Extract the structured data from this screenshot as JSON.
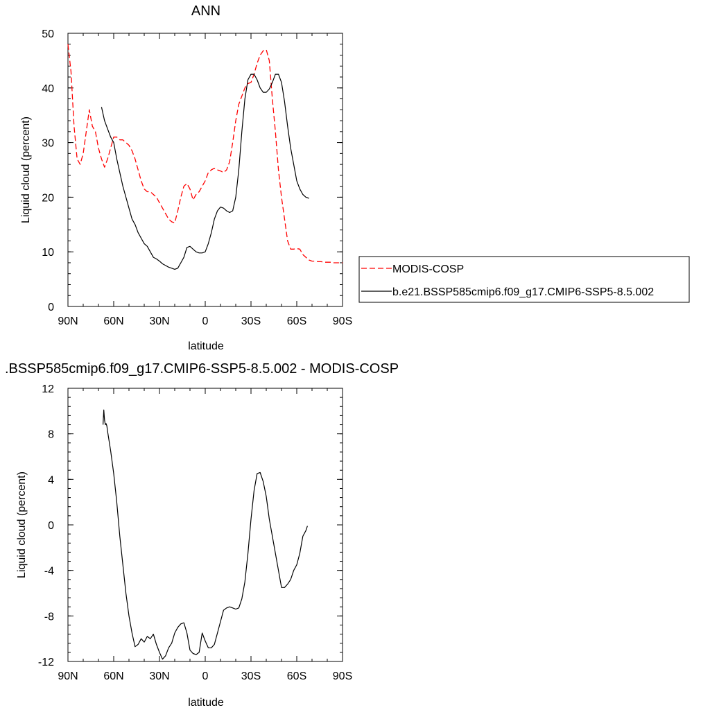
{
  "chart_data": [
    {
      "type": "line",
      "title": "ANN",
      "xlabel": "latitude",
      "ylabel": "Liquid cloud (percent)",
      "xlim": [
        90,
        -90
      ],
      "ylim": [
        0,
        50
      ],
      "x_ticks": [
        90,
        60,
        30,
        0,
        -30,
        -60,
        -90
      ],
      "x_tick_labels": [
        "90N",
        "60N",
        "30N",
        "0",
        "30S",
        "60S",
        "90S"
      ],
      "y_ticks": [
        0,
        10,
        20,
        30,
        40,
        50
      ],
      "y_tick_labels": [
        "0",
        "10",
        "20",
        "30",
        "40",
        "50"
      ],
      "grid": false,
      "legend": "right",
      "series": [
        {
          "name": "MODIS-COSP",
          "color": "#ff0000",
          "dash": "dashed",
          "x": [
            90,
            88,
            86,
            84,
            82,
            80,
            78,
            76,
            74,
            72,
            70,
            68,
            66,
            64,
            62,
            60,
            58,
            56,
            54,
            52,
            50,
            48,
            46,
            44,
            42,
            40,
            38,
            36,
            34,
            32,
            30,
            28,
            26,
            24,
            22,
            20,
            18,
            16,
            14,
            12,
            10,
            8,
            6,
            4,
            2,
            0,
            -2,
            -4,
            -6,
            -8,
            -10,
            -12,
            -14,
            -16,
            -18,
            -20,
            -22,
            -24,
            -26,
            -28,
            -30,
            -32,
            -34,
            -36,
            -38,
            -40,
            -42,
            -44,
            -46,
            -48,
            -50,
            -52,
            -54,
            -56,
            -58,
            -60,
            -62,
            -64,
            -66,
            -68,
            -70,
            -72,
            -74,
            -76,
            -78,
            -80,
            -82,
            -84,
            -86,
            -88,
            -90
          ],
          "y": [
            48,
            43,
            33,
            27,
            26,
            28,
            32,
            36,
            33,
            32,
            29,
            27,
            25.5,
            27,
            29,
            31,
            31,
            30.5,
            30.5,
            30,
            29.5,
            28.5,
            27,
            25,
            23,
            21.5,
            21,
            21,
            20.5,
            20,
            19,
            18,
            17,
            16,
            15.5,
            15.3,
            17.5,
            20,
            22,
            22.5,
            21.5,
            19.5,
            20.5,
            21,
            22,
            23,
            24.5,
            25,
            25.3,
            25,
            24.8,
            24.5,
            25,
            26.5,
            30,
            34,
            37,
            38.5,
            40,
            40.8,
            41,
            42.5,
            44.5,
            46,
            46.8,
            47,
            45,
            38,
            32,
            25,
            20,
            16,
            12,
            10.5,
            10.5,
            10.6,
            10.5,
            9.5,
            9,
            8.5,
            8.3,
            8.3,
            8.2,
            8.2,
            8.1,
            8.1,
            8.1,
            8.0,
            8.0,
            8.0,
            8.0
          ]
        },
        {
          "name": "b.e21.BSSP585cmip6.f09_g17.CMIP6-SSP5-8.5.002",
          "color": "#000000",
          "dash": "solid",
          "x": [
            68,
            66,
            64,
            62,
            60,
            58,
            56,
            54,
            52,
            50,
            48,
            46,
            44,
            42,
            40,
            38,
            36,
            34,
            32,
            30,
            28,
            26,
            24,
            22,
            20,
            18,
            16,
            14,
            12,
            10,
            8,
            6,
            4,
            2,
            0,
            -2,
            -4,
            -6,
            -8,
            -10,
            -12,
            -14,
            -16,
            -18,
            -20,
            -22,
            -24,
            -26,
            -28,
            -30,
            -32,
            -34,
            -36,
            -38,
            -40,
            -42,
            -44,
            -46,
            -48,
            -50,
            -52,
            -54,
            -56,
            -58,
            -60,
            -62,
            -64,
            -66,
            -68
          ],
          "y": [
            36.5,
            34,
            32.5,
            31,
            30,
            27,
            24.5,
            22,
            20,
            18,
            16,
            15,
            13.5,
            12.5,
            11.5,
            11,
            10,
            9,
            8.7,
            8.3,
            7.8,
            7.5,
            7.2,
            7.0,
            6.8,
            7.0,
            8,
            9,
            10.8,
            11,
            10.5,
            10,
            9.8,
            9.8,
            10,
            11.5,
            13.5,
            16,
            17.5,
            18.2,
            18,
            17.5,
            17.2,
            17.5,
            20,
            25,
            32,
            38,
            41.5,
            42.5,
            42.5,
            41.5,
            40,
            39.2,
            39.2,
            39.8,
            41,
            42.5,
            42.5,
            41,
            37.5,
            33,
            29,
            26,
            23,
            21.5,
            20.5,
            20,
            19.8
          ]
        }
      ]
    },
    {
      "type": "line",
      "title": ".BSSP585cmip6.f09_g17.CMIP6-SSP5-8.5.002 - MODIS-COSP",
      "xlabel": "latitude",
      "ylabel": "Liquid cloud (percent)",
      "xlim": [
        90,
        -90
      ],
      "ylim": [
        -12,
        12
      ],
      "x_ticks": [
        90,
        60,
        30,
        0,
        -30,
        -60,
        -90
      ],
      "x_tick_labels": [
        "90N",
        "60N",
        "30N",
        "0",
        "30S",
        "60S",
        "90S"
      ],
      "y_ticks": [
        -12,
        -8,
        -4,
        0,
        4,
        8,
        12
      ],
      "y_tick_labels": [
        "-12",
        "-8",
        "-4",
        "0",
        "4",
        "8",
        "12"
      ],
      "grid": false,
      "series": [
        {
          "color": "#000000",
          "dash": "solid",
          "x": [
            67,
            66.5,
            66,
            65.5,
            65,
            64.5,
            64,
            62,
            60,
            58,
            56,
            54,
            52,
            50,
            48,
            46,
            44,
            42,
            40,
            38,
            36,
            34,
            32,
            30,
            28,
            26,
            24,
            22,
            20,
            18,
            16,
            14,
            12,
            10,
            8,
            6,
            4,
            2,
            0,
            -2,
            -4,
            -6,
            -8,
            -10,
            -12,
            -14,
            -16,
            -18,
            -20,
            -22,
            -24,
            -26,
            -28,
            -30,
            -32,
            -34,
            -36,
            -38,
            -40,
            -42,
            -44,
            -46,
            -48,
            -50,
            -52,
            -54,
            -56,
            -58,
            -60,
            -62,
            -64,
            -66,
            -67
          ],
          "y": [
            8.8,
            10.1,
            9.2,
            8.8,
            8.9,
            8.7,
            8.2,
            6.5,
            4.5,
            2,
            -1,
            -3.5,
            -6,
            -8,
            -9.5,
            -10.7,
            -10.5,
            -10,
            -10.3,
            -9.8,
            -10,
            -9.6,
            -10.5,
            -11.2,
            -11.8,
            -11.5,
            -10.8,
            -10.4,
            -9.5,
            -9,
            -8.7,
            -8.6,
            -9.5,
            -11,
            -11.3,
            -11.4,
            -11.2,
            -9.5,
            -10.2,
            -10.8,
            -10.8,
            -10.5,
            -9.5,
            -8.5,
            -7.5,
            -7.3,
            -7.2,
            -7.3,
            -7.4,
            -7.3,
            -6.5,
            -5,
            -2.5,
            0.5,
            3,
            4.5,
            4.6,
            3.8,
            2.5,
            0.5,
            -1,
            -2.5,
            -4,
            -5.5,
            -5.5,
            -5.2,
            -4.8,
            -4,
            -3.5,
            -2.5,
            -1,
            -0.5,
            -0.1
          ]
        }
      ]
    }
  ]
}
